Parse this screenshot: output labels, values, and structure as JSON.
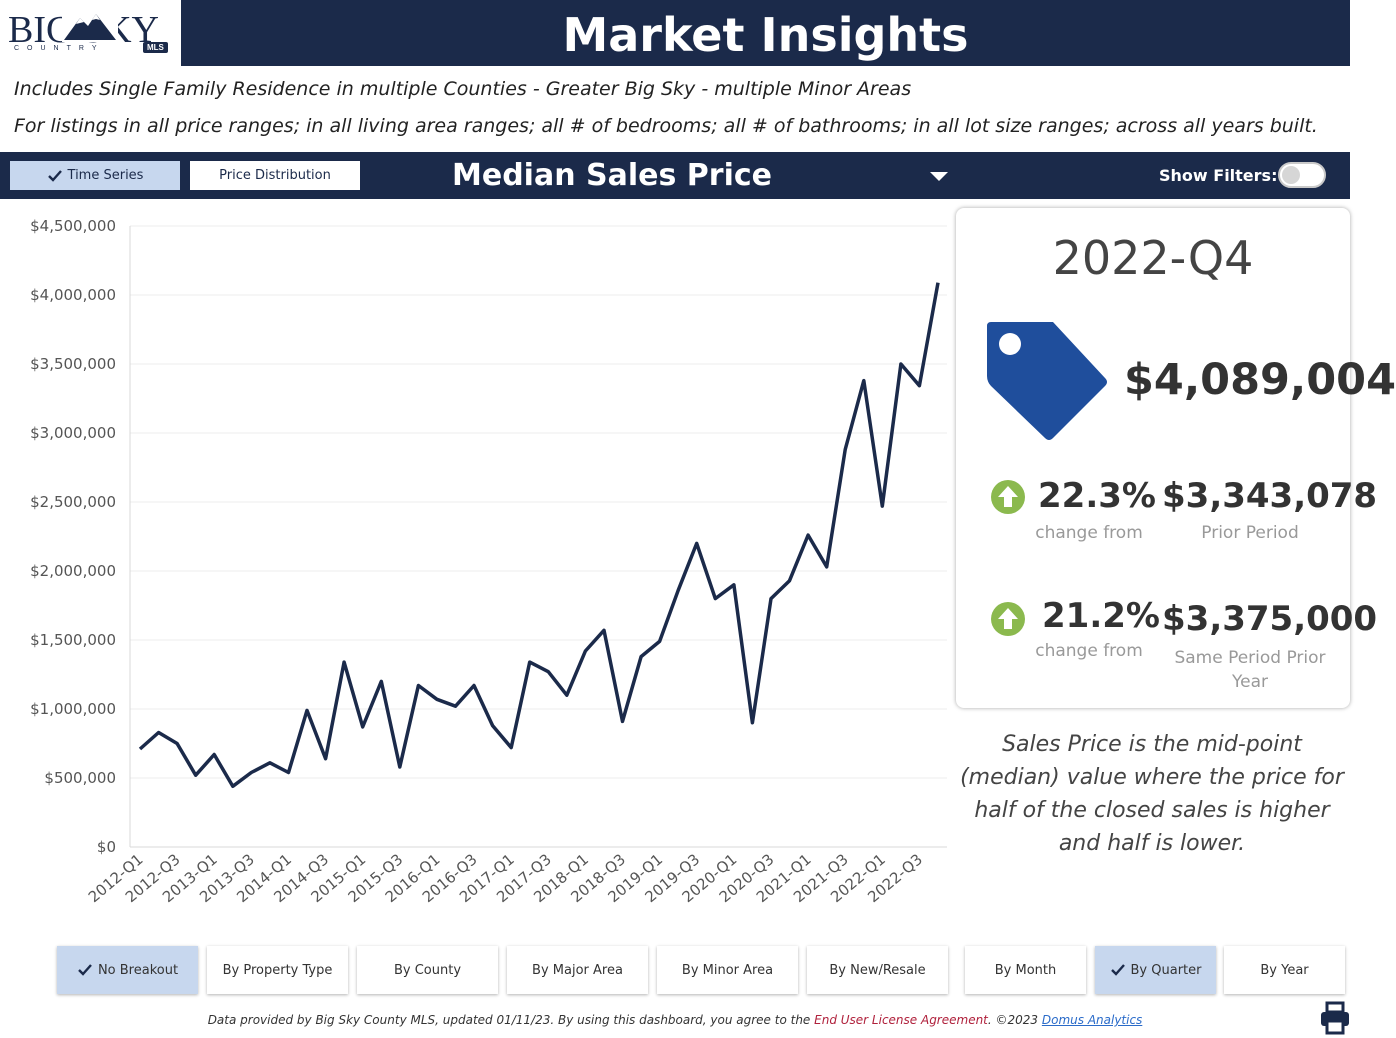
{
  "header": {
    "logo_text": "BIG SKY",
    "logo_sub": "COUNTRY",
    "logo_badge": "MLS",
    "title": "Market Insights"
  },
  "description": {
    "line1": "Includes Single Family Residence in multiple Counties - Greater Big Sky - multiple Minor Areas",
    "line2": "For listings in all price ranges; in all living area ranges; all # of bedrooms; all # of bathrooms; in all lot size ranges; across all years built."
  },
  "toolbar": {
    "tab_time_series": "Time Series",
    "tab_price_distribution": "Price Distribution",
    "metric": "Median Sales Price",
    "show_filters_label": "Show Filters:"
  },
  "kpi": {
    "period": "2022-Q4",
    "value": "$4,089,004",
    "change1_pct": "22.3%",
    "change1_label": "change from",
    "change1_value": "$3,343,078",
    "change1_value_label": "Prior Period",
    "change2_pct": "21.2%",
    "change2_label": "change from",
    "change2_value": "$3,375,000",
    "change2_value_label": "Same Period Prior Year"
  },
  "note": "Sales Price is the mid-point (median) value where the price for half of the closed sales is higher and half is lower.",
  "breakout_buttons": [
    {
      "label": "No Breakout",
      "active": true
    },
    {
      "label": "By Property Type",
      "active": false
    },
    {
      "label": "By County",
      "active": false
    },
    {
      "label": "By Major Area",
      "active": false
    },
    {
      "label": "By Minor Area",
      "active": false
    },
    {
      "label": "By New/Resale",
      "active": false
    }
  ],
  "period_buttons": [
    {
      "label": "By Month",
      "active": false
    },
    {
      "label": "By Quarter",
      "active": true
    },
    {
      "label": "By Year",
      "active": false
    }
  ],
  "footer": {
    "text1": "Data provided by Big Sky County MLS, updated 01/11/23.  By using this dashboard, you agree to the ",
    "eula": "End User License Agreement",
    "text2": ".  ©2023 ",
    "domus": "Domus Analytics"
  },
  "colors": {
    "navy": "#1b2a4a",
    "active_tab": "#c7d7ee",
    "tag": "#1f4e9c",
    "arrow": "#8bb94e",
    "eula": "#b0213c",
    "link": "#2a6bc9"
  },
  "icons": [
    "check-icon",
    "caret-down-icon",
    "price-tag-icon",
    "arrow-up-icon",
    "print-icon",
    "mountain-logo-icon"
  ],
  "chart_data": {
    "type": "line",
    "x_tick_labels": [
      "2012-Q1",
      "2012-Q3",
      "2013-Q1",
      "2013-Q3",
      "2014-Q1",
      "2014-Q3",
      "2015-Q1",
      "2015-Q3",
      "2016-Q1",
      "2016-Q3",
      "2017-Q1",
      "2017-Q3",
      "2018-Q1",
      "2018-Q3",
      "2019-Q1",
      "2019-Q3",
      "2020-Q1",
      "2020-Q3",
      "2021-Q1",
      "2021-Q3",
      "2022-Q1",
      "2022-Q3"
    ],
    "y_tick_labels": [
      "$0",
      "$500,000",
      "$1,000,000",
      "$1,500,000",
      "$2,000,000",
      "$2,500,000",
      "$3,000,000",
      "$3,500,000",
      "$4,000,000",
      "$4,500,000"
    ],
    "ylim": [
      0,
      4500000
    ],
    "x": [
      "2012-Q1",
      "2012-Q2",
      "2012-Q3",
      "2012-Q4",
      "2013-Q1",
      "2013-Q2",
      "2013-Q3",
      "2013-Q4",
      "2014-Q1",
      "2014-Q2",
      "2014-Q3",
      "2014-Q4",
      "2015-Q1",
      "2015-Q2",
      "2015-Q3",
      "2015-Q4",
      "2016-Q1",
      "2016-Q2",
      "2016-Q3",
      "2016-Q4",
      "2017-Q1",
      "2017-Q2",
      "2017-Q3",
      "2017-Q4",
      "2018-Q1",
      "2018-Q2",
      "2018-Q3",
      "2018-Q4",
      "2019-Q1",
      "2019-Q2",
      "2019-Q3",
      "2019-Q4",
      "2020-Q1",
      "2020-Q2",
      "2020-Q3",
      "2020-Q4",
      "2021-Q1",
      "2021-Q2",
      "2021-Q3",
      "2021-Q4",
      "2022-Q1",
      "2022-Q2",
      "2022-Q3",
      "2022-Q4"
    ],
    "values": [
      710000,
      830000,
      750000,
      520000,
      670000,
      440000,
      540000,
      610000,
      540000,
      990000,
      640000,
      1340000,
      870000,
      1200000,
      580000,
      1170000,
      1070000,
      1020000,
      1170000,
      880000,
      720000,
      1340000,
      1270000,
      1100000,
      1420000,
      1570000,
      910000,
      1380000,
      1490000,
      1860000,
      2200000,
      1800000,
      1900000,
      900000,
      1800000,
      1930000,
      2260000,
      2030000,
      2880000,
      3380000,
      2470000,
      3500000,
      3343078,
      4089004
    ],
    "line_color": "#1b2a4a",
    "grid": true,
    "legend": false
  }
}
